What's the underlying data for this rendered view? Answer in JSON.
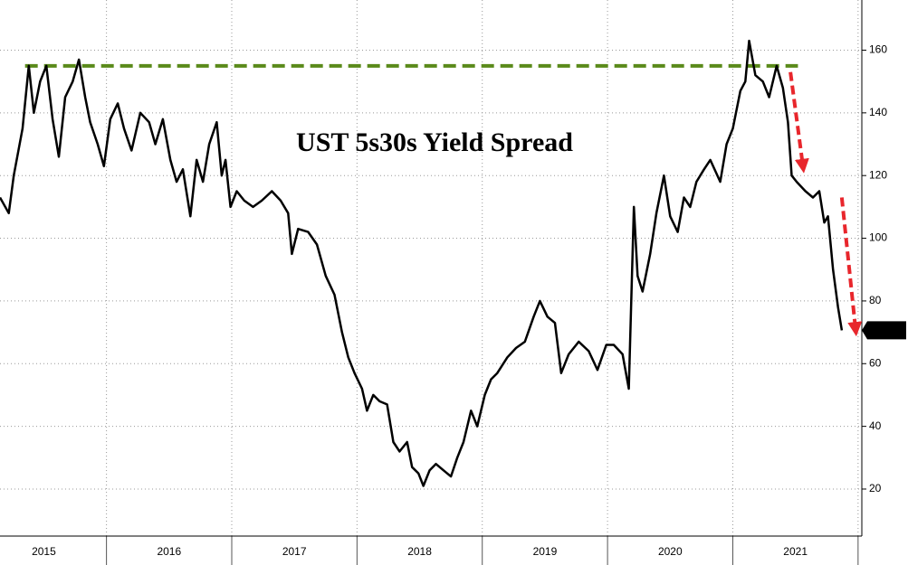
{
  "chart_data": {
    "type": "line",
    "title": "UST 5s30s Yield Spread",
    "x": [
      2015.15,
      2015.22,
      2015.26,
      2015.33,
      2015.38,
      2015.42,
      2015.47,
      2015.52,
      2015.57,
      2015.62,
      2015.67,
      2015.73,
      2015.78,
      2015.83,
      2015.87,
      2015.93,
      2015.98,
      2016.03,
      2016.09,
      2016.14,
      2016.2,
      2016.27,
      2016.34,
      2016.39,
      2016.45,
      2016.51,
      2016.56,
      2016.61,
      2016.67,
      2016.72,
      2016.77,
      2016.82,
      2016.88,
      2016.92,
      2016.95,
      2016.99,
      2017.04,
      2017.1,
      2017.17,
      2017.24,
      2017.32,
      2017.39,
      2017.45,
      2017.48,
      2017.53,
      2017.61,
      2017.68,
      2017.75,
      2017.82,
      2017.88,
      2017.93,
      2017.98,
      2018.04,
      2018.08,
      2018.13,
      2018.18,
      2018.24,
      2018.29,
      2018.34,
      2018.4,
      2018.44,
      2018.49,
      2018.53,
      2018.58,
      2018.63,
      2018.69,
      2018.75,
      2018.8,
      2018.85,
      2018.91,
      2018.96,
      2019.02,
      2019.07,
      2019.12,
      2019.2,
      2019.27,
      2019.34,
      2019.41,
      2019.46,
      2019.52,
      2019.58,
      2019.63,
      2019.69,
      2019.77,
      2019.85,
      2019.92,
      2019.99,
      2020.05,
      2020.12,
      2020.17,
      2020.21,
      2020.24,
      2020.28,
      2020.34,
      2020.39,
      2020.45,
      2020.5,
      2020.56,
      2020.61,
      2020.66,
      2020.71,
      2020.77,
      2020.82,
      2020.9,
      2020.95,
      2021.0,
      2021.06,
      2021.1,
      2021.13,
      2021.18,
      2021.24,
      2021.29,
      2021.35,
      2021.4,
      2021.44,
      2021.47,
      2021.51,
      2021.58,
      2021.64,
      2021.69,
      2021.73,
      2021.76,
      2021.8,
      2021.84,
      2021.87
    ],
    "values": [
      113,
      108,
      120,
      135,
      155,
      140,
      150,
      155,
      138,
      126,
      145,
      150,
      157,
      145,
      137,
      130,
      123,
      138,
      143,
      135,
      128,
      140,
      137,
      130,
      138,
      125,
      118,
      122,
      107,
      125,
      118,
      130,
      137,
      120,
      125,
      110,
      115,
      112,
      110,
      112,
      115,
      112,
      108,
      95,
      103,
      102,
      98,
      88,
      82,
      70,
      62,
      57,
      52,
      45,
      50,
      48,
      47,
      35,
      32,
      35,
      27,
      25,
      21,
      26,
      28,
      26,
      24,
      30,
      35,
      45,
      40,
      50,
      55,
      57,
      62,
      65,
      67,
      75,
      80,
      75,
      73,
      57,
      63,
      67,
      64,
      58,
      66,
      66,
      63,
      52,
      110,
      88,
      83,
      95,
      108,
      120,
      107,
      102,
      113,
      110,
      118,
      122,
      125,
      118,
      130,
      135,
      147,
      150,
      163,
      152,
      150,
      145,
      155,
      148,
      137,
      120,
      118,
      115,
      113,
      115,
      105,
      107,
      90,
      78,
      70.645
    ],
    "color": "#000000",
    "xlim": [
      2015.15,
      2022.03
    ],
    "xticks": [
      {
        "value": 2015.5,
        "label": "2015"
      },
      {
        "value": 2016.5,
        "label": "2016"
      },
      {
        "value": 2017.5,
        "label": "2017"
      },
      {
        "value": 2018.5,
        "label": "2018"
      },
      {
        "value": 2019.5,
        "label": "2019"
      },
      {
        "value": 2020.5,
        "label": "2020"
      },
      {
        "value": 2021.5,
        "label": "2021"
      }
    ],
    "ylim": [
      5,
      176
    ],
    "yticks": [
      20,
      40,
      60,
      80,
      100,
      120,
      140,
      160
    ],
    "grid": true,
    "annotations": [
      {
        "type": "hline",
        "value": 155,
        "x": [
          2015.35,
          2021.52
        ],
        "color": "#5a8a1a"
      },
      {
        "type": "arrow",
        "from": [
          2021.46,
          153
        ],
        "to": [
          2021.56,
          123
        ],
        "color": "#e8262c"
      },
      {
        "type": "arrow",
        "from": [
          2021.87,
          113
        ],
        "to": [
          2021.98,
          71
        ],
        "color": "#e8262c"
      }
    ]
  }
}
